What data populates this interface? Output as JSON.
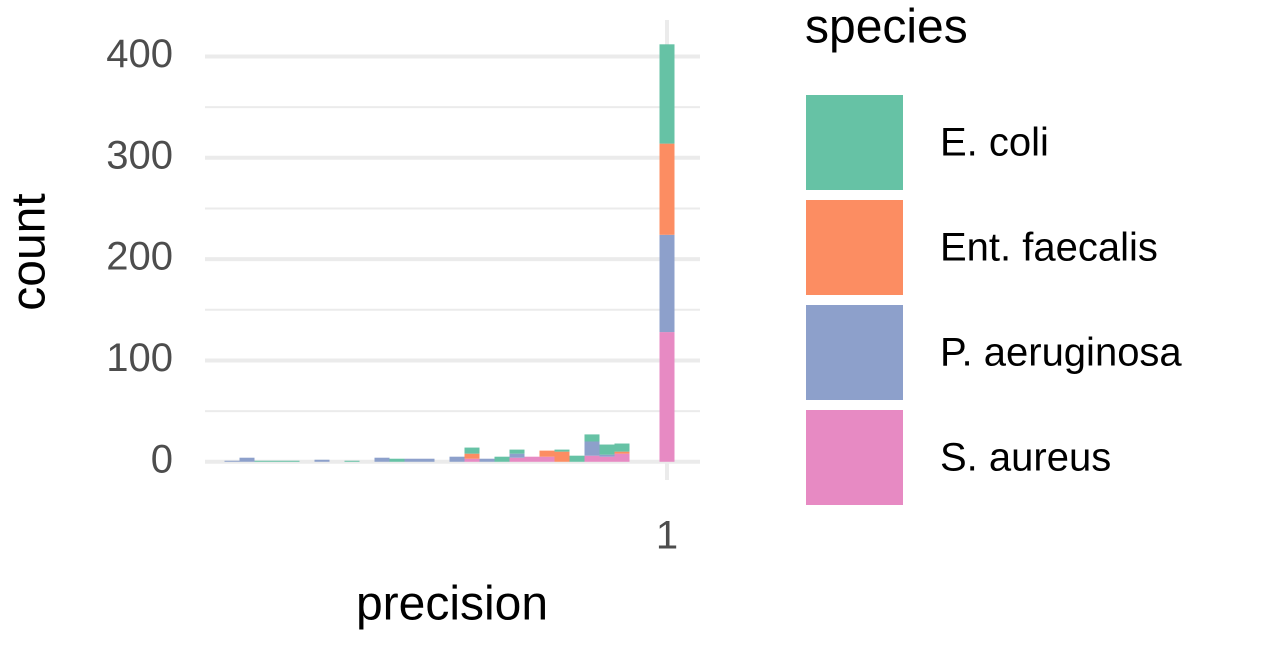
{
  "chart_data": {
    "type": "histogram",
    "x_label": "precision",
    "y_label": "count",
    "bins": [
      0.695,
      0.705,
      0.715,
      0.725,
      0.735,
      0.745,
      0.755,
      0.765,
      0.775,
      0.785,
      0.795,
      0.805,
      0.815,
      0.825,
      0.835,
      0.845,
      0.855,
      0.865,
      0.875,
      0.885,
      0.895,
      0.905,
      0.915,
      0.925,
      0.935,
      0.945,
      0.955,
      0.965,
      0.975,
      0.985,
      0.995,
      1.005
    ],
    "series": [
      {
        "name": "S. aureus",
        "color": "#e78ac3",
        "values": [
          0,
          0,
          0,
          0,
          0,
          0,
          0,
          0,
          0,
          0,
          0,
          0,
          0,
          0,
          0,
          0,
          0,
          3,
          0,
          0,
          4,
          5,
          5,
          0,
          0,
          6,
          5,
          8,
          0,
          0,
          128
        ]
      },
      {
        "name": "P. aeruginosa",
        "color": "#8da0cb",
        "values": [
          0,
          1,
          4,
          0,
          0,
          0,
          0,
          2,
          0,
          0,
          0,
          4,
          0,
          3,
          3,
          0,
          5,
          0,
          3,
          0,
          4,
          0,
          0,
          0,
          0,
          14,
          2,
          0,
          0,
          0,
          96
        ]
      },
      {
        "name": "Ent. faecalis",
        "color": "#fc8d62",
        "values": [
          0,
          0,
          0,
          0,
          0,
          0,
          0,
          0,
          0,
          0,
          0,
          0,
          0,
          0,
          0,
          0,
          0,
          5,
          0,
          0,
          0,
          0,
          6,
          10,
          0,
          0,
          0,
          2,
          0,
          0,
          90
        ]
      },
      {
        "name": "E. coli",
        "color": "#66c2a5",
        "values": [
          0,
          0,
          0,
          1,
          1,
          1,
          0,
          0,
          0,
          1,
          0,
          0,
          3,
          0,
          0,
          0,
          0,
          6,
          0,
          5,
          4,
          0,
          0,
          2,
          6,
          7,
          10,
          8,
          0,
          0,
          98
        ]
      }
    ],
    "stacked": true,
    "legend_title": "species",
    "xlim": [
      0.692,
      1.022
    ],
    "xticks": [
      1
    ],
    "ylim": [
      -18,
      436
    ],
    "yticks": [
      0,
      100,
      200,
      300,
      400
    ],
    "yticks_minor": [
      50,
      150,
      250,
      350
    ],
    "grid": true
  }
}
